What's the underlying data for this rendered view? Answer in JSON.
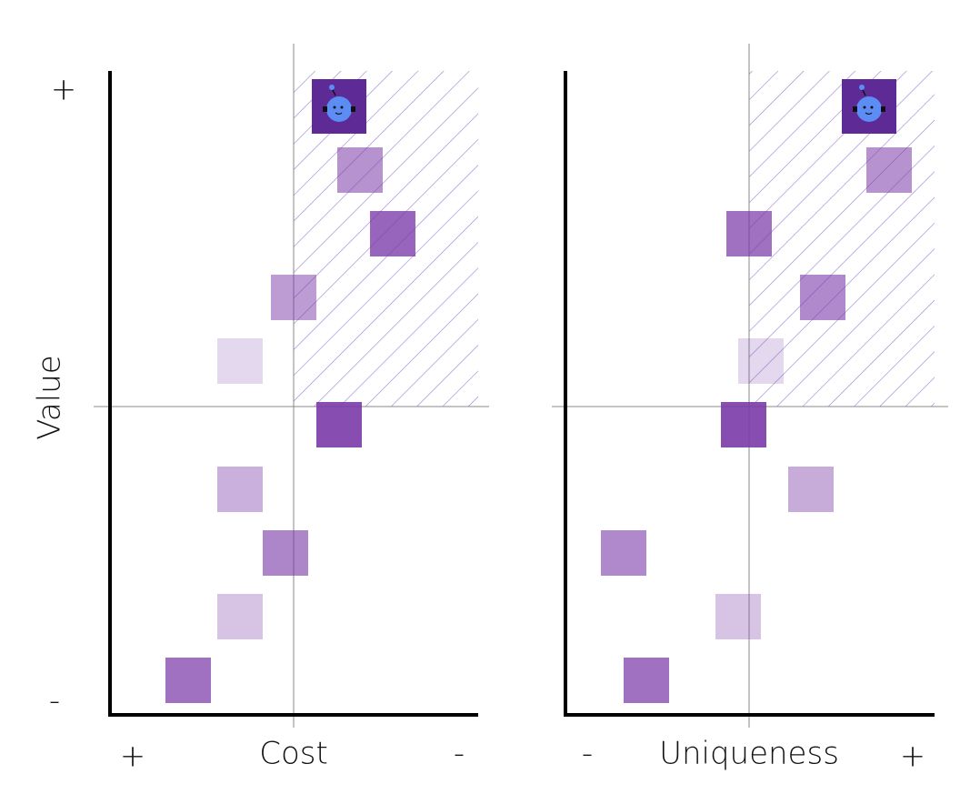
{
  "left_panel": {
    "y_top": "+",
    "y_bottom": "-",
    "y_label": "Value",
    "x_left": "+",
    "x_label": "Cost",
    "x_right": "-"
  },
  "right_panel": {
    "x_left": "-",
    "x_label": "Uniqueness",
    "x_right": "+"
  }
}
